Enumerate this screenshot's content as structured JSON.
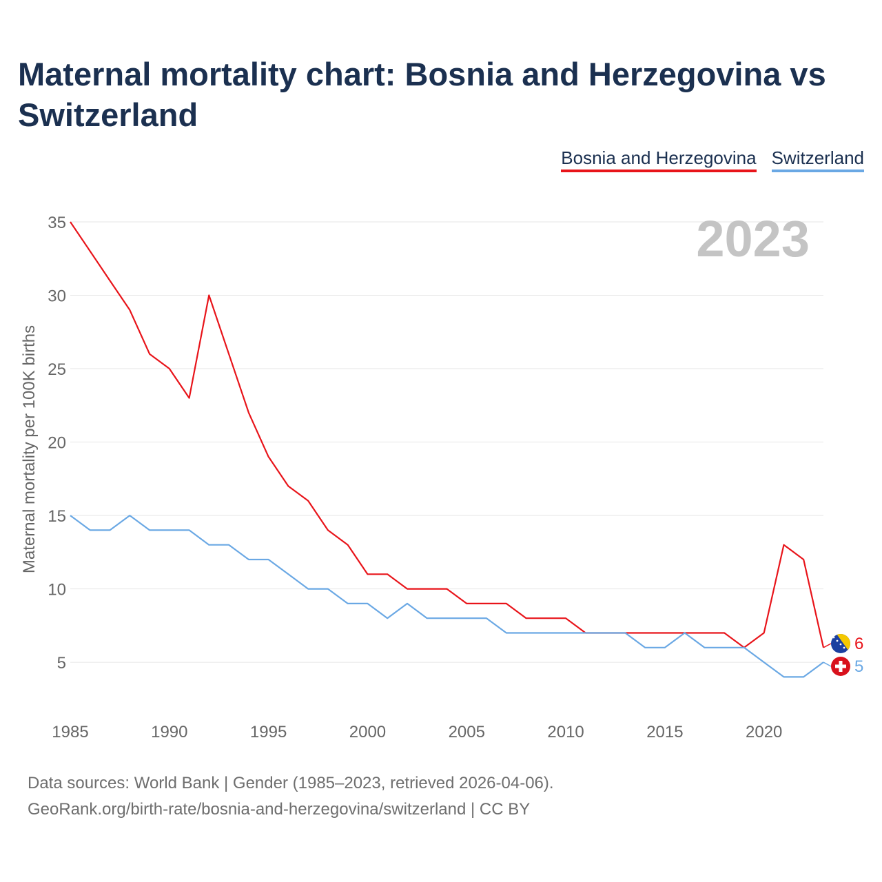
{
  "chart_data": {
    "type": "line",
    "title": "Maternal mortality chart: Bosnia and Herzegovina vs Switzerland",
    "ylabel": "Maternal mortality per 100K births",
    "xlabel": "",
    "year_label": "2023",
    "xlim": [
      1985,
      2023
    ],
    "ylim": [
      2,
      35
    ],
    "x_ticks": [
      1985,
      1990,
      1995,
      2000,
      2005,
      2010,
      2015,
      2020
    ],
    "y_ticks": [
      5,
      10,
      15,
      20,
      25,
      30,
      35
    ],
    "legend_position": "top-right",
    "x": [
      1985,
      1986,
      1987,
      1988,
      1989,
      1990,
      1991,
      1992,
      1993,
      1994,
      1995,
      1996,
      1997,
      1998,
      1999,
      2000,
      2001,
      2002,
      2003,
      2004,
      2005,
      2006,
      2007,
      2008,
      2009,
      2010,
      2011,
      2012,
      2013,
      2014,
      2015,
      2016,
      2017,
      2018,
      2019,
      2020,
      2021,
      2022,
      2023
    ],
    "series": [
      {
        "name": "Bosnia and Herzegovina",
        "color": "#e8141a",
        "end_label": "6",
        "flag_icon": "bosnia-flag-icon",
        "values": [
          35,
          33,
          31,
          29,
          26,
          25,
          23,
          30,
          26,
          22,
          19,
          17,
          16,
          14,
          13,
          11,
          11,
          10,
          10,
          10,
          9,
          9,
          9,
          8,
          8,
          8,
          7,
          7,
          7,
          7,
          7,
          7,
          7,
          7,
          6,
          7,
          13,
          12,
          6
        ]
      },
      {
        "name": "Switzerland",
        "color": "#6aa8e4",
        "end_label": "5",
        "flag_icon": "switzerland-flag-icon",
        "values": [
          15,
          14,
          14,
          15,
          14,
          14,
          14,
          13,
          13,
          12,
          12,
          11,
          10,
          10,
          9,
          9,
          8,
          9,
          8,
          8,
          8,
          8,
          7,
          7,
          7,
          7,
          7,
          7,
          7,
          6,
          6,
          7,
          6,
          6,
          6,
          5,
          4,
          4,
          5
        ]
      }
    ]
  },
  "source": {
    "line1": "Data sources: World Bank | Gender (1985–2023, retrieved 2026-04-06).",
    "line2": "GeoRank.org/birth-rate/bosnia-and-herzegovina/switzerland | CC BY"
  }
}
